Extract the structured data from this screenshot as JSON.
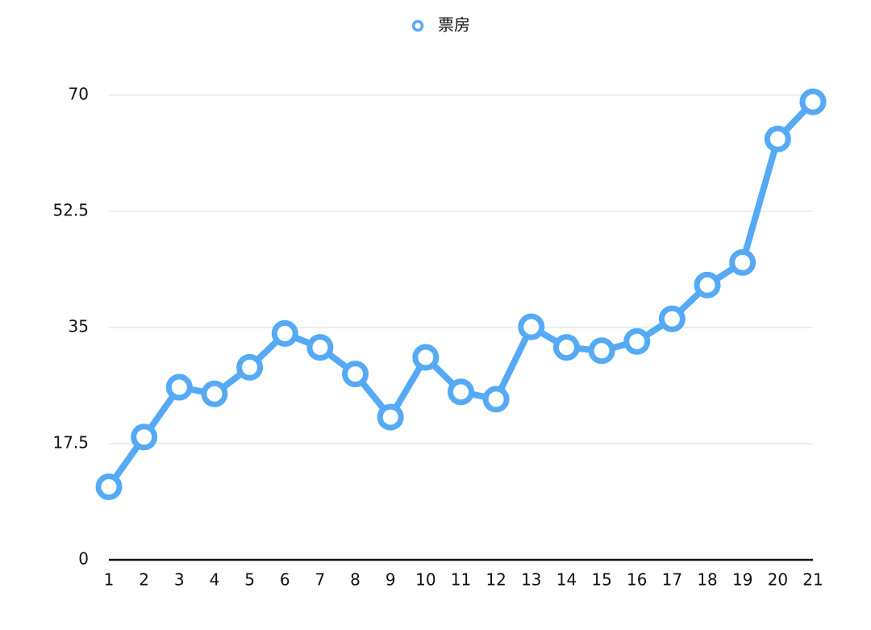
{
  "chart_data": {
    "type": "line",
    "categories": [
      "1",
      "2",
      "3",
      "4",
      "5",
      "6",
      "7",
      "8",
      "9",
      "10",
      "11",
      "12",
      "13",
      "14",
      "15",
      "16",
      "17",
      "18",
      "19",
      "20",
      "21"
    ],
    "series": [
      {
        "name": "票房",
        "color": "#55aaf5",
        "values": [
          11,
          18.5,
          26,
          25,
          29,
          34.1,
          32,
          28,
          21.5,
          30.5,
          25.3,
          24.2,
          35.1,
          32,
          31.5,
          32.9,
          36.3,
          41.4,
          44.8,
          63.4,
          69
        ]
      }
    ],
    "ylim": [
      0,
      70
    ],
    "yticks": [
      0,
      17.5,
      35,
      52.5,
      70
    ],
    "grid": true,
    "legend": "top"
  }
}
